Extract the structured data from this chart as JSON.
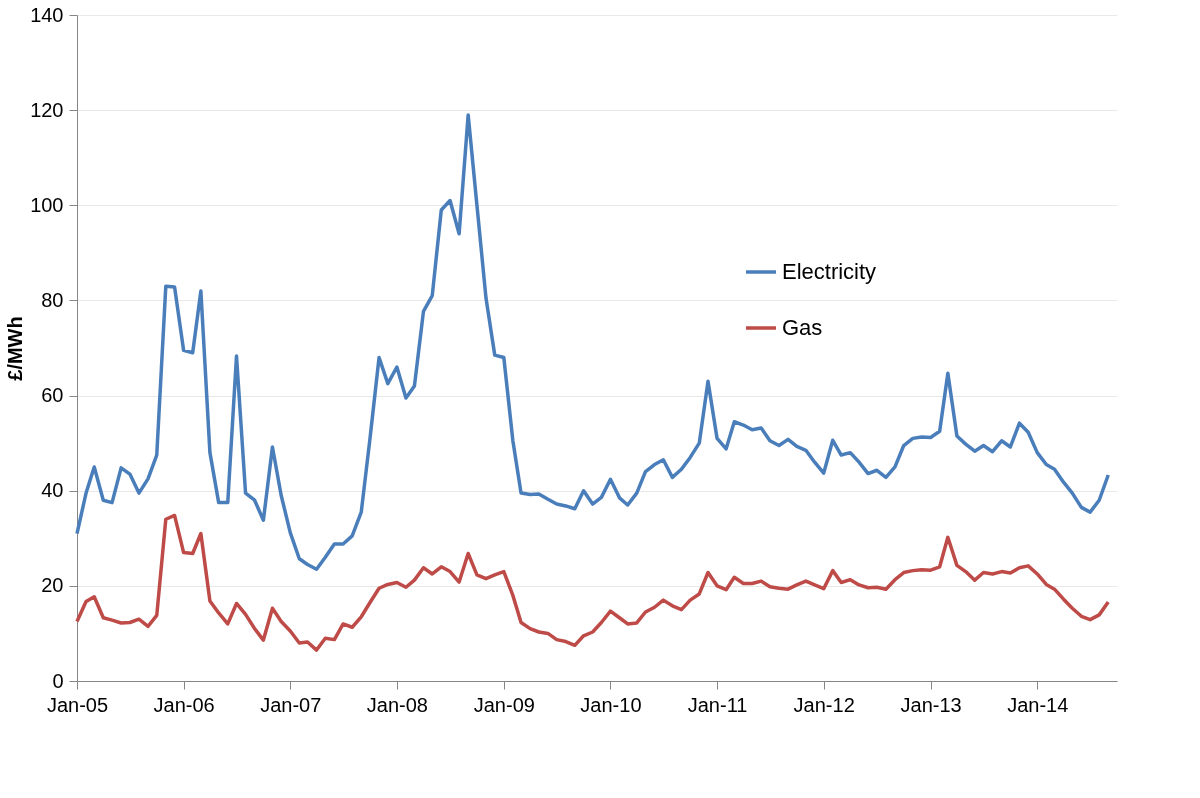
{
  "chart_data": {
    "type": "line",
    "ylabel": "£/MWh",
    "ylim": [
      0,
      140
    ],
    "yticks": [
      0,
      20,
      40,
      60,
      80,
      100,
      120,
      140
    ],
    "xlim": [
      "2005-01",
      "2014-10"
    ],
    "xticks": [
      {
        "value": "2005-01",
        "label": "Jan-05"
      },
      {
        "value": "2006-01",
        "label": "Jan-06"
      },
      {
        "value": "2007-01",
        "label": "Jan-07"
      },
      {
        "value": "2008-01",
        "label": "Jan-08"
      },
      {
        "value": "2009-01",
        "label": "Jan-09"
      },
      {
        "value": "2010-01",
        "label": "Jan-10"
      },
      {
        "value": "2011-01",
        "label": "Jan-11"
      },
      {
        "value": "2012-01",
        "label": "Jan-12"
      },
      {
        "value": "2013-01",
        "label": "Jan-13"
      },
      {
        "value": "2014-01",
        "label": "Jan-14"
      }
    ],
    "x": [
      "2005-01",
      "2005-02",
      "2005-03",
      "2005-04",
      "2005-05",
      "2005-06",
      "2005-07",
      "2005-08",
      "2005-09",
      "2005-10",
      "2005-11",
      "2005-12",
      "2006-01",
      "2006-02",
      "2006-03",
      "2006-04",
      "2006-05",
      "2006-06",
      "2006-07",
      "2006-08",
      "2006-09",
      "2006-10",
      "2006-11",
      "2006-12",
      "2007-01",
      "2007-02",
      "2007-03",
      "2007-04",
      "2007-05",
      "2007-06",
      "2007-07",
      "2007-08",
      "2007-09",
      "2007-10",
      "2007-11",
      "2007-12",
      "2008-01",
      "2008-02",
      "2008-03",
      "2008-04",
      "2008-05",
      "2008-06",
      "2008-07",
      "2008-08",
      "2008-09",
      "2008-10",
      "2008-11",
      "2008-12",
      "2009-01",
      "2009-02",
      "2009-03",
      "2009-04",
      "2009-05",
      "2009-06",
      "2009-07",
      "2009-08",
      "2009-09",
      "2009-10",
      "2009-11",
      "2009-12",
      "2010-01",
      "2010-02",
      "2010-03",
      "2010-04",
      "2010-05",
      "2010-06",
      "2010-07",
      "2010-08",
      "2010-09",
      "2010-10",
      "2010-11",
      "2010-12",
      "2011-01",
      "2011-02",
      "2011-03",
      "2011-04",
      "2011-05",
      "2011-06",
      "2011-07",
      "2011-08",
      "2011-09",
      "2011-10",
      "2011-11",
      "2011-12",
      "2012-01",
      "2012-02",
      "2012-03",
      "2012-04",
      "2012-05",
      "2012-06",
      "2012-07",
      "2012-08",
      "2012-09",
      "2012-10",
      "2012-11",
      "2012-12",
      "2013-01",
      "2013-02",
      "2013-03",
      "2013-04",
      "2013-05",
      "2013-06",
      "2013-07",
      "2013-08",
      "2013-09",
      "2013-10",
      "2013-11",
      "2013-12",
      "2014-01",
      "2014-02",
      "2014-03",
      "2014-04",
      "2014-05",
      "2014-06",
      "2014-07",
      "2014-08",
      "2014-09"
    ],
    "series": [
      {
        "name": "Electricity",
        "color": "#4a7ebb",
        "values": [
          31,
          39.5,
          45,
          38,
          37.5,
          44.8,
          43.5,
          39.5,
          42.5,
          47.5,
          83,
          82.8,
          69.5,
          69,
          82,
          48,
          37.5,
          37.5,
          68.3,
          39.5,
          38,
          33.8,
          49.2,
          39,
          31.2,
          25.7,
          24.5,
          23.5,
          26,
          28.8,
          28.8,
          30.5,
          35.5,
          51,
          68,
          62.5,
          66,
          59.5,
          62,
          77.7,
          81,
          99,
          101,
          94,
          119,
          100,
          80.5,
          68.5,
          68,
          50.5,
          39.5,
          39.2,
          39.3,
          38.2,
          37.2,
          36.8,
          36.2,
          40,
          37.2,
          38.6,
          42.4,
          38.5,
          37,
          39.5,
          44,
          45.5,
          46.5,
          42.8,
          44.5,
          47,
          50,
          63,
          51,
          48.8,
          54.5,
          53.8,
          52.8,
          53.2,
          50.5,
          49.5,
          50.8,
          49.3,
          48.5,
          46,
          43.7,
          50.6,
          47.5,
          48,
          46,
          43.6,
          44.3,
          42.8,
          45,
          49.5,
          51,
          51.3,
          51.2,
          52.5,
          64.7,
          51.5,
          49.8,
          48.3,
          49.5,
          48.2,
          50.5,
          49.2,
          54.2,
          52.3,
          48,
          45.5,
          44.5,
          41.8,
          39.5,
          36.5,
          35.5,
          38,
          43.3
        ]
      },
      {
        "name": "Gas",
        "color": "#be4b48",
        "values": [
          12.5,
          16.7,
          17.7,
          13.3,
          12.8,
          12.2,
          12.3,
          13,
          11.5,
          13.8,
          34,
          34.8,
          27,
          26.8,
          31,
          16.8,
          14.3,
          12,
          16.3,
          14,
          11,
          8.6,
          15.3,
          12.5,
          10.5,
          8,
          8.2,
          6.5,
          9,
          8.7,
          12,
          11.3,
          13.5,
          16.5,
          19.5,
          20.3,
          20.7,
          19.7,
          21.2,
          23.8,
          22.5,
          24,
          23,
          20.8,
          26.8,
          22.3,
          21.5,
          22.3,
          23,
          18,
          12.3,
          11,
          10.3,
          10,
          8.7,
          8.3,
          7.5,
          9.5,
          10.3,
          12.3,
          14.7,
          13.3,
          12,
          12.2,
          14.5,
          15.5,
          17,
          15.8,
          15,
          17,
          18.3,
          22.8,
          20,
          19.2,
          21.8,
          20.5,
          20.5,
          21,
          19.8,
          19.5,
          19.3,
          20.2,
          21,
          20.2,
          19.4,
          23.2,
          20.7,
          21.3,
          20.2,
          19.6,
          19.7,
          19.3,
          21.3,
          22.8,
          23.2,
          23.4,
          23.3,
          24,
          30.2,
          24.3,
          23,
          21.2,
          22.8,
          22.5,
          23,
          22.7,
          23.8,
          24.2,
          22.5,
          20.3,
          19.3,
          17.2,
          15.3,
          13.6,
          12.9,
          13.9,
          16.6
        ]
      }
    ],
    "grid": "y",
    "legend": "top right",
    "marker": "none",
    "line_style": "solid"
  }
}
